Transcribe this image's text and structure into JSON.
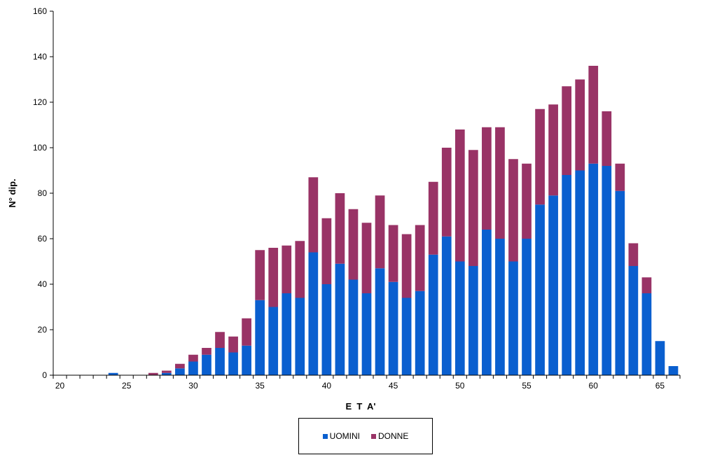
{
  "chart_data": {
    "type": "bar",
    "stacked": true,
    "title": "",
    "xlabel": "E  T  A'",
    "ylabel": "N° dip.",
    "ylim": [
      0,
      160
    ],
    "yticks": [
      0,
      20,
      40,
      60,
      80,
      100,
      120,
      140,
      160
    ],
    "xtick_labels": [
      "20",
      "25",
      "30",
      "35",
      "40",
      "45",
      "50",
      "55",
      "60",
      "65"
    ],
    "x": [
      20,
      21,
      22,
      23,
      24,
      25,
      26,
      27,
      28,
      29,
      30,
      31,
      32,
      33,
      34,
      35,
      36,
      37,
      38,
      39,
      40,
      41,
      42,
      43,
      44,
      45,
      46,
      47,
      48,
      49,
      50,
      51,
      52,
      53,
      54,
      55,
      56,
      57,
      58,
      59,
      60,
      61,
      62,
      63,
      64,
      65,
      66
    ],
    "series": [
      {
        "name": "UOMINI",
        "color": "#0a5fcf",
        "values": [
          0,
          0,
          0,
          0,
          1,
          0,
          0,
          0,
          1,
          3,
          6,
          9,
          12,
          10,
          13,
          33,
          30,
          36,
          34,
          54,
          40,
          49,
          42,
          36,
          47,
          41,
          34,
          37,
          53,
          61,
          50,
          48,
          64,
          60,
          50,
          60,
          75,
          79,
          88,
          90,
          93,
          92,
          81,
          48,
          36,
          15,
          4
        ]
      },
      {
        "name": "DONNE",
        "color": "#993366",
        "values": [
          0,
          0,
          0,
          0,
          0,
          0,
          0,
          1,
          1,
          2,
          3,
          3,
          7,
          7,
          12,
          22,
          26,
          21,
          25,
          33,
          29,
          31,
          31,
          31,
          32,
          25,
          28,
          29,
          32,
          39,
          58,
          51,
          45,
          49,
          45,
          33,
          42,
          40,
          39,
          40,
          43,
          24,
          12,
          10,
          7,
          0,
          0
        ]
      }
    ],
    "legend": {
      "position": "bottom"
    },
    "grid": false
  }
}
